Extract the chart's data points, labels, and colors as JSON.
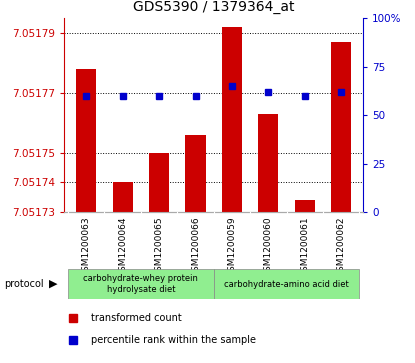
{
  "title": "GDS5390 / 1379364_at",
  "samples": [
    "GSM1200063",
    "GSM1200064",
    "GSM1200065",
    "GSM1200066",
    "GSM1200059",
    "GSM1200060",
    "GSM1200061",
    "GSM1200062"
  ],
  "red_values": [
    7.051778,
    7.05174,
    7.05175,
    7.051756,
    7.051792,
    7.051763,
    7.051734,
    7.051787
  ],
  "blue_values": [
    60,
    60,
    60,
    60,
    65,
    62,
    60,
    62
  ],
  "y_min": 7.05173,
  "y_max": 7.051795,
  "y_ticks": [
    7.05173,
    7.05174,
    7.05175,
    7.05177,
    7.05179
  ],
  "y2_ticks": [
    0,
    25,
    50,
    75,
    100
  ],
  "protocol_groups": [
    {
      "label": "carbohydrate-whey protein\nhydrolysate diet",
      "start": 0,
      "end": 4,
      "color": "#90ee90"
    },
    {
      "label": "carbohydrate-amino acid diet",
      "start": 4,
      "end": 8,
      "color": "#90ee90"
    }
  ],
  "red_color": "#cc0000",
  "blue_color": "#0000cc",
  "bar_width": 0.55,
  "blue_marker_size": 5,
  "legend_red": "transformed count",
  "legend_blue": "percentile rank within the sample",
  "ylabel_color": "#cc0000",
  "y2label_color": "#0000cc",
  "bg_color": "#ffffff",
  "plot_bg_color": "#ffffff",
  "gray_bg": "#d3d3d3",
  "title_fontsize": 10,
  "tick_fontsize": 7.5,
  "sample_fontsize": 6.5
}
